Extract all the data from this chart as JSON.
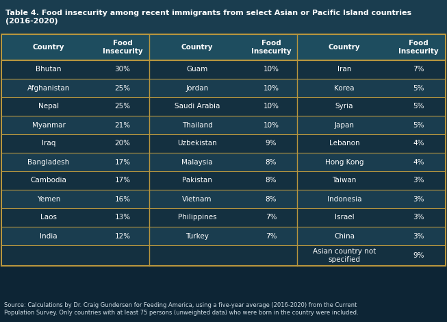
{
  "title": "Table 4. Food insecurity among recent immigrants from select Asian or Pacific Island countries\n(2016-2020)",
  "source": "Source: Calculations by Dr. Craig Gundersen for Feeding America, using a five-year average (2016-2020) from the Current\nPopulation Survey. Only countries with at least 75 persons (unweighted data) who were born in the country were included.",
  "col1": [
    [
      "Bhutan",
      "30%"
    ],
    [
      "Afghanistan",
      "25%"
    ],
    [
      "Nepal",
      "25%"
    ],
    [
      "Myanmar",
      "21%"
    ],
    [
      "Iraq",
      "20%"
    ],
    [
      "Bangladesh",
      "17%"
    ],
    [
      "Cambodia",
      "17%"
    ],
    [
      "Yemen",
      "16%"
    ],
    [
      "Laos",
      "13%"
    ],
    [
      "India",
      "12%"
    ]
  ],
  "col2": [
    [
      "Guam",
      "10%"
    ],
    [
      "Jordan",
      "10%"
    ],
    [
      "Saudi Arabia",
      "10%"
    ],
    [
      "Thailand",
      "10%"
    ],
    [
      "Uzbekistan",
      "9%"
    ],
    [
      "Malaysia",
      "8%"
    ],
    [
      "Pakistan",
      "8%"
    ],
    [
      "Vietnam",
      "8%"
    ],
    [
      "Philippines",
      "7%"
    ],
    [
      "Turkey",
      "7%"
    ]
  ],
  "col3": [
    [
      "Iran",
      "7%"
    ],
    [
      "Korea",
      "5%"
    ],
    [
      "Syria",
      "5%"
    ],
    [
      "Japan",
      "5%"
    ],
    [
      "Lebanon",
      "4%"
    ],
    [
      "Hong Kong",
      "4%"
    ],
    [
      "Taiwan",
      "3%"
    ],
    [
      "Indonesia",
      "3%"
    ],
    [
      "Israel",
      "3%"
    ],
    [
      "China",
      "3%"
    ],
    [
      "Asian country not\nspecified",
      "9%"
    ]
  ],
  "bg_outer": "#0d2535",
  "bg_title": "#1a3d4f",
  "bg_header": "#1e4d5f",
  "bg_row_dark": "#143040",
  "bg_row_light": "#1a3d4f",
  "bg_source": "#0d2535",
  "text_white": "#ffffff",
  "text_light": "#d0dde5",
  "border_color": "#b8963e",
  "title_fontsize": 8.0,
  "header_fontsize": 7.5,
  "data_fontsize": 7.5,
  "source_fontsize": 6.0,
  "figw": 6.53,
  "figh": 4.7,
  "dpi": 100
}
